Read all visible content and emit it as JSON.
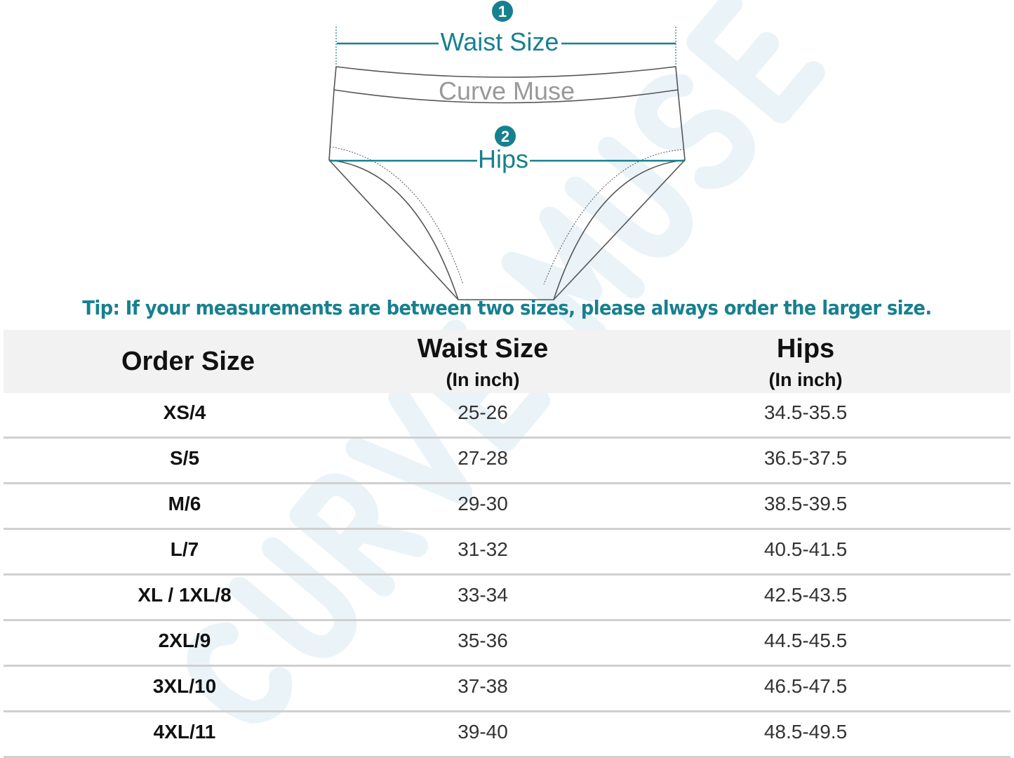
{
  "diagram": {
    "marker1": "1",
    "waist_label": "Waist Size",
    "brand_on_waistband": "Curve Muse",
    "marker2": "2",
    "hips_label": "Hips"
  },
  "tip": "Tip: If your measurements are between two sizes, please always order the larger size.",
  "table": {
    "headers": [
      {
        "main": "Order Size",
        "sub": ""
      },
      {
        "main": "Waist Size",
        "sub": "(In inch)"
      },
      {
        "main": "Hips",
        "sub": "(In inch)"
      }
    ],
    "rows": [
      [
        "XS/4",
        "25-26",
        "34.5-35.5"
      ],
      [
        "S/5",
        "27-28",
        "36.5-37.5"
      ],
      [
        "M/6",
        "29-30",
        "38.5-39.5"
      ],
      [
        "L/7",
        "31-32",
        "40.5-41.5"
      ],
      [
        "XL / 1XL/8",
        "33-34",
        "42.5-43.5"
      ],
      [
        "2XL/9",
        "35-36",
        "44.5-45.5"
      ],
      [
        "3XL/10",
        "37-38",
        "46.5-47.5"
      ],
      [
        "4XL/11",
        "39-40",
        "48.5-49.5"
      ]
    ]
  },
  "watermark": "CURVE MUSE",
  "colors": {
    "accent": "#17808f",
    "header_bg": "#f2f2f2",
    "watermark": "#eaf3f8"
  }
}
